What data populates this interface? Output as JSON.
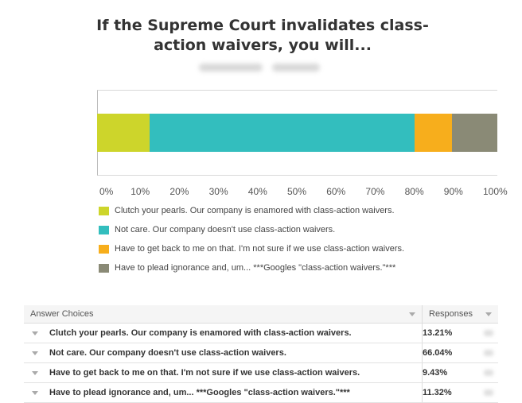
{
  "chart_data": {
    "type": "bar",
    "orientation": "horizontal-stacked",
    "title": "If the Supreme Court invalidates class-action waivers, you will...",
    "xlim": [
      0,
      100
    ],
    "xticks": [
      "0%",
      "10%",
      "20%",
      "30%",
      "40%",
      "50%",
      "60%",
      "70%",
      "80%",
      "90%",
      "100%"
    ],
    "legend_position": "bottom",
    "series": [
      {
        "name": "Clutch your pearls. Our company is enamored with class-action waivers.",
        "value": 13.21,
        "color": "#cdd52b"
      },
      {
        "name": "Not care. Our company doesn't use class-action waivers.",
        "value": 66.04,
        "color": "#33bebe"
      },
      {
        "name": "Have to get back to me on that. I'm not sure if we use class-action waivers.",
        "value": 9.43,
        "color": "#f7ae1c"
      },
      {
        "name": "Have to plead ignorance and, um...  ***Googles \"class-action waivers.\"***",
        "value": 11.32,
        "color": "#8a8a76"
      }
    ]
  },
  "table": {
    "headers": {
      "choices": "Answer Choices",
      "responses": "Responses"
    },
    "rows": [
      {
        "choice": "Clutch your pearls. Our company is enamored with class-action waivers.",
        "pct": "13.21%"
      },
      {
        "choice": "Not care. Our company doesn't use class-action waivers.",
        "pct": "66.04%"
      },
      {
        "choice": "Have to get back to me on that. I'm not sure if we use class-action waivers.",
        "pct": "9.43%"
      },
      {
        "choice": "Have to plead ignorance and, um...  ***Googles \"class-action waivers.\"***",
        "pct": "11.32%"
      }
    ]
  }
}
